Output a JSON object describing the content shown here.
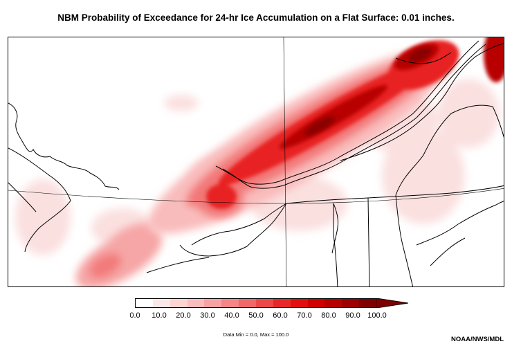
{
  "title": "NBM Probability of Exceedance for 24-hr Ice Accumulation on a Flat Surface: 0.01 inches.",
  "colorbar": {
    "colors": [
      "#ffffff",
      "#fde8e8",
      "#fcd4d4",
      "#f9bdbd",
      "#f7a3a3",
      "#f48686",
      "#f06868",
      "#ec4848",
      "#e82828",
      "#e30e0e",
      "#d00000",
      "#b80000",
      "#9c0000",
      "#800000"
    ],
    "tick_labels": [
      "0.0",
      "10.0",
      "20.0",
      "30.0",
      "40.0",
      "50.0",
      "60.0",
      "70.0",
      "80.0",
      "90.0",
      "100.0"
    ],
    "arrow_color": "#800000"
  },
  "data_range": "Data Min = 0.0, Max = 100.0",
  "credit": "NOAA/NWS/MDL"
}
